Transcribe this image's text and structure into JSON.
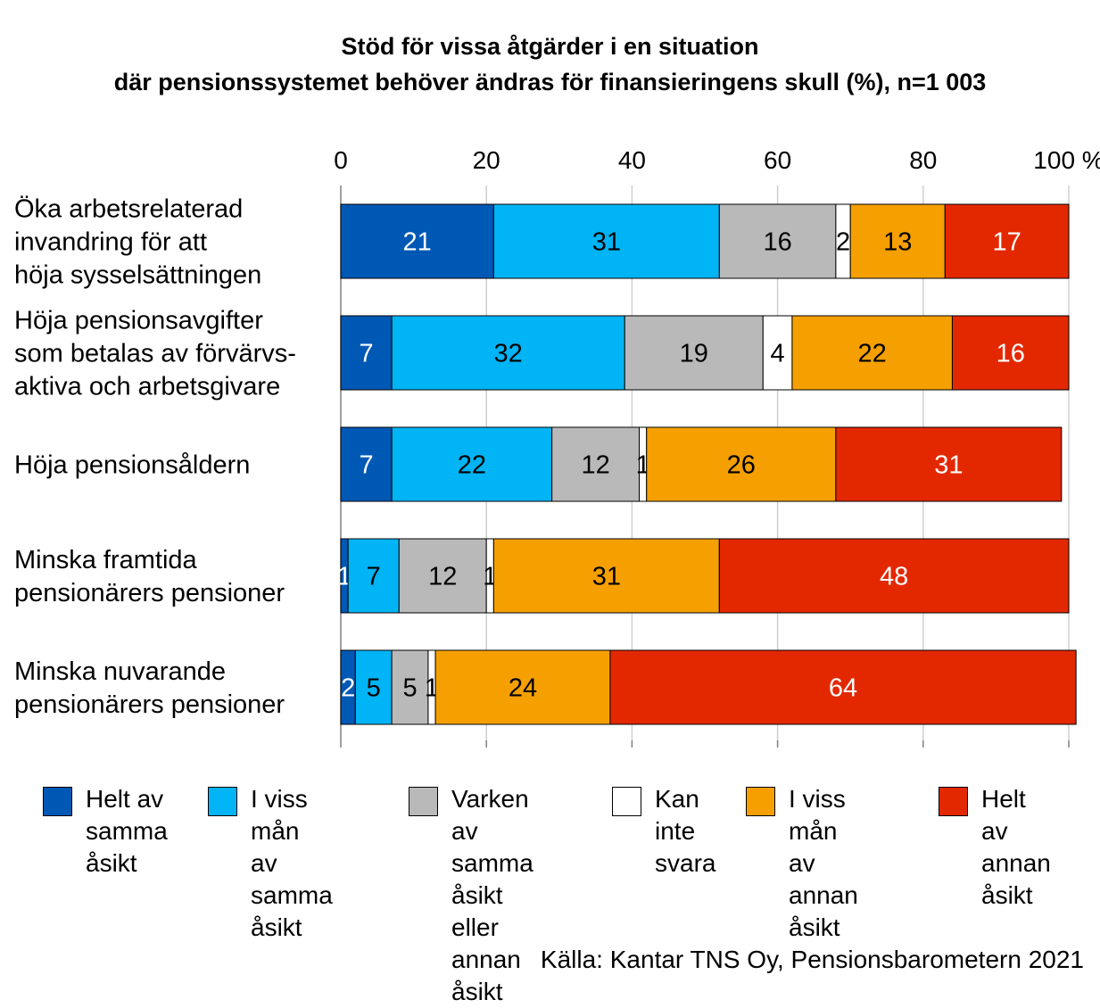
{
  "title_line1": "Stöd för vissa åtgärder i en situation",
  "title_line2": "där pensionssystemet behöver ändras för finansieringens skull (%), n=1 003",
  "source": "Källa: Kantar TNS Oy, Pensionsbarometern 2021",
  "chart_data": {
    "type": "bar",
    "orientation": "horizontal",
    "stacked": true,
    "xlim": [
      0,
      100
    ],
    "x_ticks": [
      "0",
      "20",
      "40",
      "60",
      "80",
      "100 %"
    ],
    "grid": true,
    "legend_position": "bottom",
    "categories": [
      [
        "Öka arbetsrelaterad",
        "invandring för att",
        "höja sysselsättningen"
      ],
      [
        "Höja pensionsavgifter",
        "som betalas av förvärvs-",
        "aktiva och arbetsgivare"
      ],
      [
        "Höja pensionsåldern"
      ],
      [
        "Minska framtida",
        "pensionärers pensioner"
      ],
      [
        "Minska nuvarande",
        "pensionärers pensioner"
      ]
    ],
    "series": [
      {
        "name": "Helt av\nsamma\nåsikt",
        "color": "#0058b5",
        "label_color": "#ffffff",
        "values": [
          21,
          7,
          7,
          1,
          2
        ]
      },
      {
        "name": "I viss mån\nav samma\nåsikt",
        "color": "#00b4f5",
        "label_color": "#000000",
        "values": [
          31,
          32,
          22,
          7,
          5
        ]
      },
      {
        "name": "Varken\nav samma\nåsikt eller\nannan åsikt",
        "color": "#b9b9b9",
        "label_color": "#000000",
        "values": [
          16,
          19,
          12,
          12,
          5
        ]
      },
      {
        "name": "Kan\ninte\nsvara",
        "color": "#ffffff",
        "label_color": "#000000",
        "values": [
          2,
          4,
          1,
          1,
          1
        ]
      },
      {
        "name": "I viss mån\nav annan\nåsikt",
        "color": "#f5a000",
        "label_color": "#000000",
        "values": [
          13,
          22,
          26,
          31,
          24
        ]
      },
      {
        "name": "Helt av\nannan\nåsikt",
        "color": "#e32800",
        "label_color": "#ffffff",
        "values": [
          17,
          16,
          31,
          48,
          64
        ]
      }
    ]
  }
}
